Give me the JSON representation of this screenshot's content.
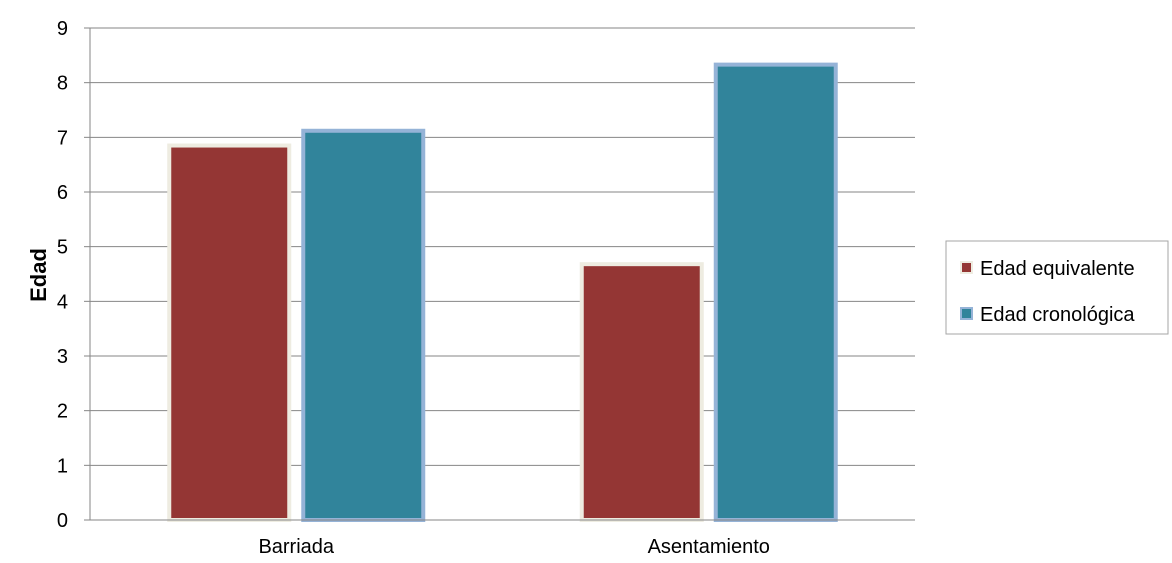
{
  "chart_data": {
    "type": "bar",
    "categories": [
      "Barriada",
      "Asentamiento"
    ],
    "series": [
      {
        "name": "Edad equivalente",
        "values": [
          6.85,
          4.68
        ],
        "color": "#943634",
        "border": "#EEECE1"
      },
      {
        "name": "Edad cronológica",
        "values": [
          7.12,
          8.33
        ],
        "color": "#31849B",
        "border": "#95B3D7"
      }
    ],
    "title": "",
    "xlabel": "",
    "ylabel": "Edad",
    "ylim": [
      0,
      9
    ],
    "yticks": [
      0,
      1,
      2,
      3,
      4,
      5,
      6,
      7,
      8,
      9
    ],
    "grid": true,
    "legend_position": "right"
  }
}
